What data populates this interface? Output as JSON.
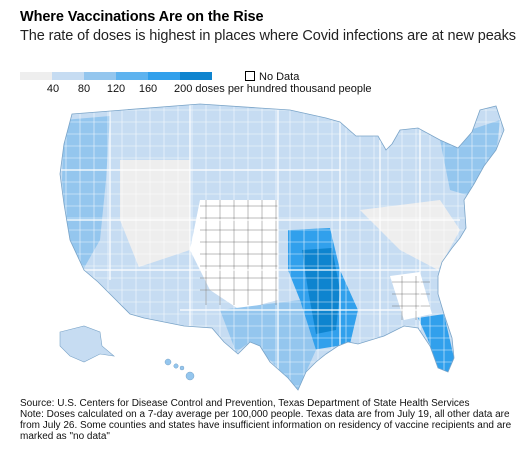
{
  "title": "Where Vaccinations Are on the Rise",
  "subtitle": "The rate of doses is highest in places where Covid infections are at new peaks",
  "legend": {
    "colors": [
      "#eeeeee",
      "#c6dcf2",
      "#94c6ee",
      "#5eb3ef",
      "#31a0ec",
      "#0e84cf"
    ],
    "ticks": [
      "40",
      "80",
      "120",
      "160",
      "200 doses per hundred thousand people"
    ],
    "no_data_label": "No Data"
  },
  "source": "Source: U.S. Centers for Disease Control and Prevention, Texas Department of State Health Services",
  "note": "Note: Doses calculated on a 7-day average per 100,000 people. Texas data are from July 19, all other data are from July 26. Some counties and states have insufficient information on residency of vaccine recipients and are marked as \"no data\""
}
